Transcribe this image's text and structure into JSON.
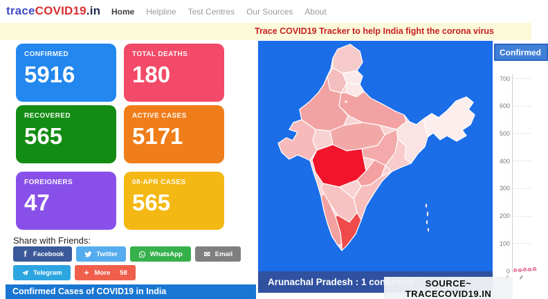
{
  "header": {
    "logo": {
      "part1": "trace",
      "part2": "COVID19",
      "part3": ".in"
    },
    "nav": [
      {
        "label": "Home",
        "active": true
      },
      {
        "label": "Helpline",
        "active": false
      },
      {
        "label": "Test Centres",
        "active": false
      },
      {
        "label": "Our Sources",
        "active": false
      },
      {
        "label": "About",
        "active": false
      }
    ]
  },
  "banner": {
    "text": "Trace COVID19 Tracker to help India fight the corona virus",
    "bg": "#fcf8da",
    "text_color": "#c52222"
  },
  "stats": [
    {
      "label": "CONFIRMED",
      "value": "5916",
      "color": "#2287ee"
    },
    {
      "label": "TOTAL DEATHS",
      "value": "180",
      "color": "#f24a68"
    },
    {
      "label": "RECOVERED",
      "value": "565",
      "color": "#128c12"
    },
    {
      "label": "ACTIVE CASES",
      "value": "5171",
      "color": "#ef7e1a"
    },
    {
      "label": "FOREIGNERS",
      "value": "47",
      "color": "#8950e9"
    },
    {
      "label": "08-APR CASES",
      "value": "565",
      "color": "#f4b814"
    }
  ],
  "share": {
    "title": "Share with Friends:",
    "buttons": [
      {
        "label": "Facebook",
        "icon": "facebook-icon",
        "color": "#3b5998"
      },
      {
        "label": "Twitter",
        "icon": "twitter-icon",
        "color": "#55acee"
      },
      {
        "label": "WhatsApp",
        "icon": "whatsapp-icon",
        "color": "#35b04b"
      },
      {
        "label": "Email",
        "icon": "email-icon",
        "color": "#7f7f7f"
      },
      {
        "label": "Telegram",
        "icon": "telegram-icon",
        "color": "#2ca5e0"
      },
      {
        "label": "More",
        "count": "58",
        "icon": "plus-icon",
        "color": "#ef5f4c"
      }
    ]
  },
  "table_header": {
    "text": "Confirmed Cases of COVID19 in India",
    "bg": "#1976d2"
  },
  "map": {
    "status_text": "Arunachal Pradesh : 1 confirmed",
    "colors": {
      "panel_bg": "#1b6de8",
      "status_bar_bg": "#30519f",
      "highest_state": "#f1142b",
      "high_state": "#ef4b4b",
      "mid_state": "#f2a2a2",
      "low_state": "#fbe8e8"
    }
  },
  "chart": {
    "tab_label": "Confirmed",
    "chart_data": {
      "type": "line",
      "title": "Confirmed",
      "series": [
        {
          "name": "Confirmed",
          "points": [
            1,
            1,
            3,
            4,
            6
          ]
        }
      ],
      "ylim": [
        0,
        700
      ],
      "yticks": [
        700,
        600,
        500,
        400,
        300,
        200,
        100,
        0
      ],
      "grid": true,
      "legend_position": "none",
      "point_color": "#d84a7a"
    }
  },
  "watermark": {
    "line1": "SOURCE~",
    "line2": "TRACECOVID19.IN"
  }
}
